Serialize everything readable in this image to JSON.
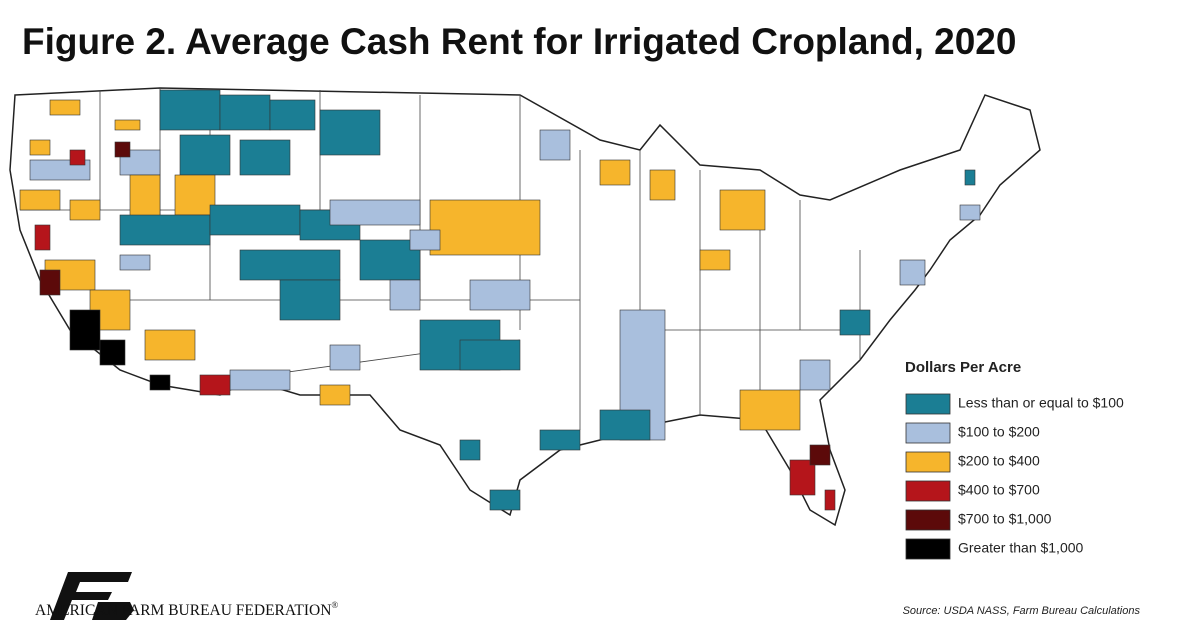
{
  "header": {
    "title": "Figure 2. Average Cash Rent for Irrigated Cropland, 2020"
  },
  "legend": {
    "title": "Dollars Per Acre",
    "items": [
      {
        "label": "Less than or equal to $100",
        "color": "#1b7e94"
      },
      {
        "label": "$100 to $200",
        "color": "#a9bfdd"
      },
      {
        "label": "$200 to $400",
        "color": "#f6b52c"
      },
      {
        "label": "$400 to $700",
        "color": "#b5151b"
      },
      {
        "label": "$700 to $1,000",
        "color": "#5c0a0a"
      },
      {
        "label": "Greater than $1,000",
        "color": "#000000"
      }
    ]
  },
  "footer": {
    "organization": "AMERICAN FARM BUREAU FEDERATION",
    "trademark": "®",
    "source": "Source: USDA NASS, Farm Bureau Calculations"
  }
}
